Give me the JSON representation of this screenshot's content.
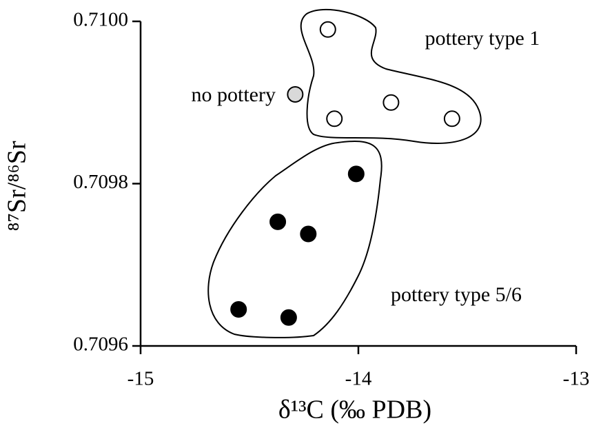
{
  "chart_data": {
    "type": "scatter",
    "xlabel": "δ¹³C (‰ PDB)",
    "ylabel": "⁸⁷Sr/⁸⁶Sr",
    "xlim": [
      -15,
      -13
    ],
    "xticks": [
      -15,
      -14,
      -13
    ],
    "ylim": [
      0.7096,
      0.71
    ],
    "yticks": [
      0.7096,
      0.7098,
      {
        "value": 0.71,
        "label": "0.7100"
      }
    ],
    "series": [
      {
        "name": "pottery type 1",
        "color": "#ffffff",
        "x": [
          -14.14,
          -14.11,
          -13.85,
          -13.57
        ],
        "values": [
          0.70999,
          0.70988,
          0.7099,
          0.70988
        ]
      },
      {
        "name": "no pottery",
        "color": "#d9d9d9",
        "x": [
          -14.29
        ],
        "values": [
          0.70991
        ]
      },
      {
        "name": "pottery type 5/6",
        "color": "#000000",
        "x": [
          -14.01,
          -14.37,
          -14.23,
          -14.55,
          -14.32
        ],
        "values": [
          0.709812,
          0.709753,
          0.709738,
          0.709645,
          0.709635
        ]
      }
    ]
  }
}
